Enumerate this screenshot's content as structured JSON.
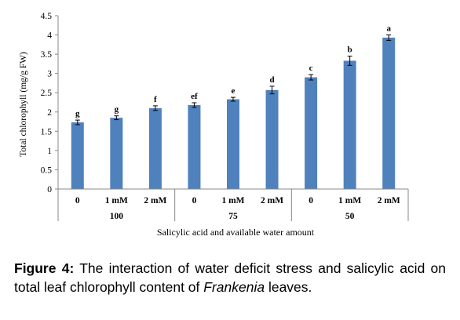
{
  "chart_data": {
    "type": "bar",
    "ylabel": "Total chlorophyll (mg/g FW)",
    "xlabel": "Salicylic  acid and available water amount",
    "ylim": [
      0,
      4.5
    ],
    "yticks": [
      "0",
      "0.5",
      "1",
      "1.5",
      "2",
      "2.5",
      "3",
      "3.5",
      "4",
      "4.5"
    ],
    "categories": [
      "0",
      "1 mM",
      "2 mM",
      "0",
      "1 mM",
      "2 mM",
      "0",
      "1 mM",
      "2 mM"
    ],
    "groups": [
      "100",
      "75",
      "50"
    ],
    "values": [
      1.73,
      1.85,
      2.1,
      2.18,
      2.33,
      2.57,
      2.9,
      3.33,
      3.93
    ],
    "errors": [
      0.06,
      0.05,
      0.06,
      0.06,
      0.05,
      0.1,
      0.07,
      0.12,
      0.07
    ],
    "letters": [
      "g",
      "g",
      "f",
      "ef",
      "e",
      "d",
      "c",
      "b",
      "a"
    ],
    "bar_color": "#4F81BD",
    "grid": false
  },
  "caption": {
    "label": "Figure 4:",
    "text": " The interaction of water deficit stress and salicylic acid on total leaf chlorophyll content of ",
    "italic": "Frankenia",
    "end": " leaves."
  }
}
